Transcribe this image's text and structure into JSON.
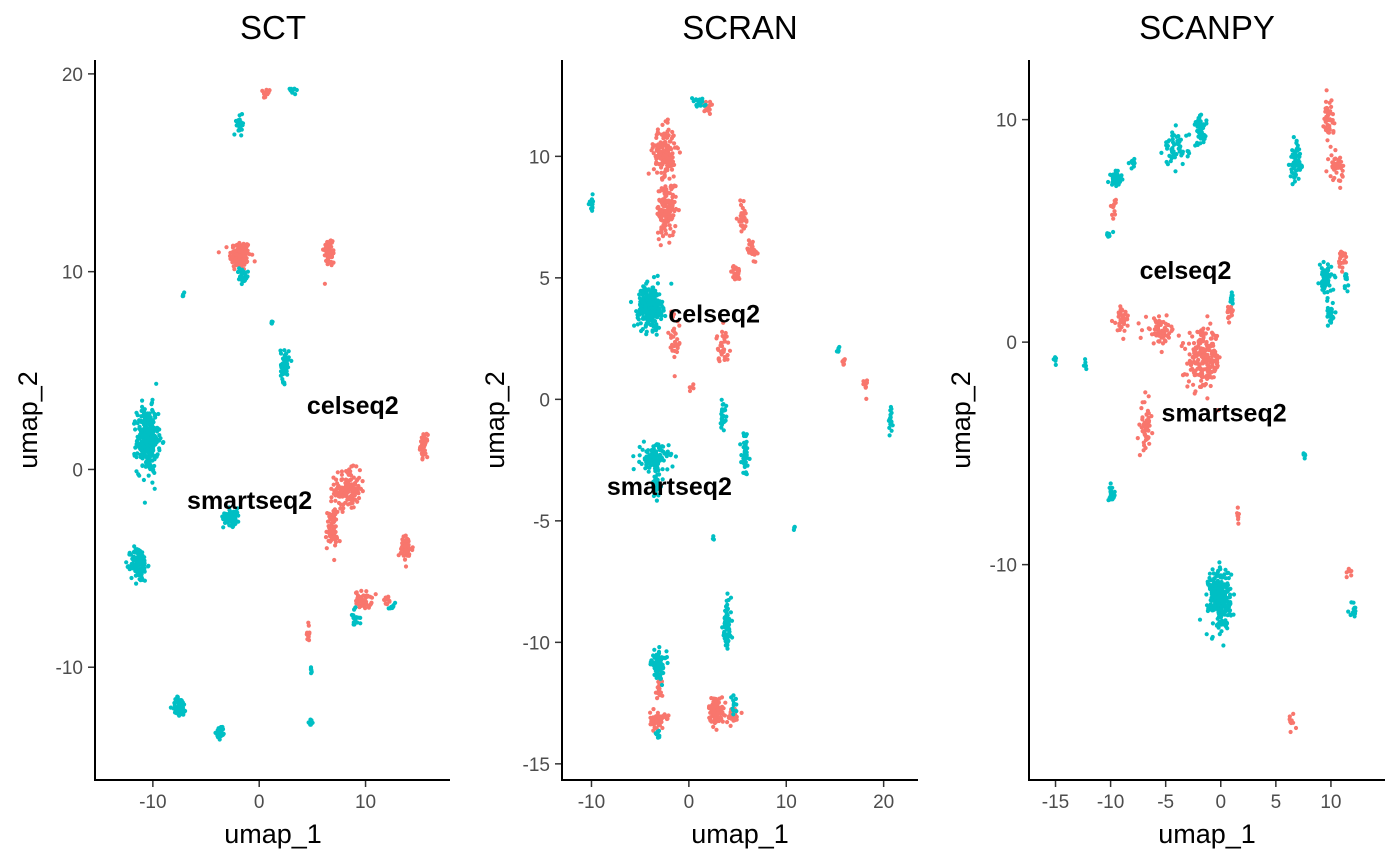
{
  "chart_data": [
    {
      "type": "scatter",
      "title": "SCT",
      "xlabel": "umap_1",
      "ylabel": "umap_2",
      "xlim": [
        -14.5,
        17
      ],
      "ylim": [
        -15.5,
        20.5
      ],
      "xticks": [
        -10,
        0,
        10
      ],
      "yticks": [
        -10,
        0,
        10,
        20
      ],
      "legend": "none",
      "grid": false,
      "series": [
        {
          "color": "#F8766D"
        },
        {
          "color": "#00BFC4"
        }
      ],
      "clusters": [
        {
          "series": 1,
          "x": -10.5,
          "y": 1.5,
          "sx": 0.9,
          "sy": 1.5,
          "n": 320
        },
        {
          "series": 1,
          "x": -11.3,
          "y": -4.8,
          "sx": 0.7,
          "sy": 0.8,
          "n": 120
        },
        {
          "series": 1,
          "x": -7.5,
          "y": -12.0,
          "sx": 0.6,
          "sy": 0.45,
          "n": 60
        },
        {
          "series": 1,
          "x": -3.6,
          "y": -13.3,
          "sx": 0.35,
          "sy": 0.3,
          "n": 30
        },
        {
          "series": 1,
          "x": -2.6,
          "y": -2.4,
          "sx": 0.7,
          "sy": 0.4,
          "n": 80
        },
        {
          "series": 1,
          "x": 2.4,
          "y": 5.3,
          "sx": 0.35,
          "sy": 0.8,
          "n": 60
        },
        {
          "series": 1,
          "x": -1.8,
          "y": 17.4,
          "sx": 0.3,
          "sy": 0.4,
          "n": 30
        },
        {
          "series": 1,
          "x": 3.2,
          "y": 19.2,
          "sx": 0.4,
          "sy": 0.15,
          "n": 10
        },
        {
          "series": 1,
          "x": -7.1,
          "y": 8.9,
          "sx": 0.1,
          "sy": 0.1,
          "n": 4
        },
        {
          "series": 1,
          "x": 1.2,
          "y": 7.5,
          "sx": 0.1,
          "sy": 0.1,
          "n": 4
        },
        {
          "series": 1,
          "x": -1.6,
          "y": 9.7,
          "sx": 0.5,
          "sy": 0.4,
          "n": 25
        },
        {
          "series": 1,
          "x": 9.0,
          "y": -7.5,
          "sx": 0.4,
          "sy": 0.4,
          "n": 20
        },
        {
          "series": 1,
          "x": 12.5,
          "y": -6.9,
          "sx": 0.3,
          "sy": 0.2,
          "n": 8
        },
        {
          "series": 1,
          "x": 4.8,
          "y": -12.8,
          "sx": 0.2,
          "sy": 0.12,
          "n": 10
        },
        {
          "series": 1,
          "x": 4.9,
          "y": -10.2,
          "sx": 0.1,
          "sy": 0.3,
          "n": 6
        },
        {
          "series": 0,
          "x": -1.8,
          "y": 10.8,
          "sx": 0.9,
          "sy": 0.7,
          "n": 130
        },
        {
          "series": 0,
          "x": 6.6,
          "y": 11.0,
          "sx": 0.5,
          "sy": 0.7,
          "n": 55
        },
        {
          "series": 0,
          "x": 0.7,
          "y": 19.0,
          "sx": 0.3,
          "sy": 0.25,
          "n": 15
        },
        {
          "series": 0,
          "x": 8.3,
          "y": -1.0,
          "sx": 1.1,
          "sy": 0.9,
          "n": 150
        },
        {
          "series": 0,
          "x": 6.8,
          "y": -3.0,
          "sx": 0.5,
          "sy": 1.0,
          "n": 70
        },
        {
          "series": 0,
          "x": 15.5,
          "y": 1.2,
          "sx": 0.3,
          "sy": 0.5,
          "n": 45
        },
        {
          "series": 0,
          "x": 13.8,
          "y": -4.0,
          "sx": 0.6,
          "sy": 0.6,
          "n": 55
        },
        {
          "series": 0,
          "x": 9.8,
          "y": -6.6,
          "sx": 0.7,
          "sy": 0.4,
          "n": 50
        },
        {
          "series": 0,
          "x": 4.6,
          "y": -8.3,
          "sx": 0.15,
          "sy": 0.5,
          "n": 12
        },
        {
          "series": 0,
          "x": 12.0,
          "y": -6.6,
          "sx": 0.3,
          "sy": 0.2,
          "n": 10
        }
      ],
      "labels": [
        {
          "text": "celseq2",
          "x": 8.8,
          "y": 3.2
        },
        {
          "text": "smartseq2",
          "x": -0.9,
          "y": -1.6
        }
      ]
    },
    {
      "type": "scatter",
      "title": "SCRAN",
      "xlabel": "umap_1",
      "ylabel": "umap_2",
      "xlim": [
        -12,
        22.5
      ],
      "ylim": [
        -15.5,
        13.8
      ],
      "xticks": [
        -10,
        0,
        10,
        20
      ],
      "yticks": [
        -15,
        -10,
        -5,
        0,
        5,
        10
      ],
      "legend": "none",
      "grid": false,
      "series": [
        {
          "color": "#F8766D"
        },
        {
          "color": "#00BFC4"
        }
      ],
      "clusters": [
        {
          "series": 1,
          "x": -4.0,
          "y": 3.8,
          "sx": 1.1,
          "sy": 0.8,
          "n": 280
        },
        {
          "series": 1,
          "x": -3.5,
          "y": -2.4,
          "sx": 1.3,
          "sy": 0.5,
          "n": 120
        },
        {
          "series": 1,
          "x": -3.3,
          "y": -3.5,
          "sx": 0.5,
          "sy": 0.5,
          "n": 40
        },
        {
          "series": 1,
          "x": -10.0,
          "y": 8.1,
          "sx": 0.2,
          "sy": 0.3,
          "n": 15
        },
        {
          "series": 1,
          "x": 1.0,
          "y": 12.2,
          "sx": 0.6,
          "sy": 0.2,
          "n": 20
        },
        {
          "series": 1,
          "x": 3.5,
          "y": -0.6,
          "sx": 0.3,
          "sy": 0.5,
          "n": 25
        },
        {
          "series": 1,
          "x": 5.8,
          "y": -2.2,
          "sx": 0.35,
          "sy": 0.8,
          "n": 50
        },
        {
          "series": 1,
          "x": 3.9,
          "y": -9.4,
          "sx": 0.4,
          "sy": 1.0,
          "n": 80
        },
        {
          "series": 1,
          "x": -3.1,
          "y": -10.9,
          "sx": 0.7,
          "sy": 0.5,
          "n": 80
        },
        {
          "series": 1,
          "x": 20.7,
          "y": -0.9,
          "sx": 0.2,
          "sy": 0.4,
          "n": 20
        },
        {
          "series": 1,
          "x": 15.3,
          "y": 2.0,
          "sx": 0.15,
          "sy": 0.1,
          "n": 6
        },
        {
          "series": 1,
          "x": 10.8,
          "y": -5.3,
          "sx": 0.1,
          "sy": 0.1,
          "n": 4
        },
        {
          "series": 1,
          "x": 2.5,
          "y": -5.7,
          "sx": 0.08,
          "sy": 0.08,
          "n": 3
        },
        {
          "series": 1,
          "x": -3.2,
          "y": -13.8,
          "sx": 0.3,
          "sy": 0.15,
          "n": 10
        },
        {
          "series": 1,
          "x": 4.6,
          "y": -12.5,
          "sx": 0.3,
          "sy": 0.3,
          "n": 12
        },
        {
          "series": 0,
          "x": -2.5,
          "y": 10.2,
          "sx": 1.0,
          "sy": 0.9,
          "n": 170
        },
        {
          "series": 0,
          "x": -2.3,
          "y": 7.8,
          "sx": 0.9,
          "sy": 1.0,
          "n": 140
        },
        {
          "series": 0,
          "x": 5.5,
          "y": 7.5,
          "sx": 0.35,
          "sy": 0.5,
          "n": 35
        },
        {
          "series": 0,
          "x": 6.5,
          "y": 6.2,
          "sx": 0.4,
          "sy": 0.4,
          "n": 30
        },
        {
          "series": 0,
          "x": 4.8,
          "y": 5.2,
          "sx": 0.4,
          "sy": 0.3,
          "n": 25
        },
        {
          "series": 0,
          "x": 3.5,
          "y": 2.2,
          "sx": 0.6,
          "sy": 0.6,
          "n": 35
        },
        {
          "series": 0,
          "x": -1.5,
          "y": 2.5,
          "sx": 0.6,
          "sy": 1.2,
          "n": 30
        },
        {
          "series": 0,
          "x": 2.0,
          "y": 12.0,
          "sx": 0.6,
          "sy": 0.4,
          "n": 15
        },
        {
          "series": 0,
          "x": 0.3,
          "y": 0.4,
          "sx": 0.3,
          "sy": 0.3,
          "n": 5
        },
        {
          "series": 0,
          "x": 18.0,
          "y": 0.6,
          "sx": 0.3,
          "sy": 0.4,
          "n": 10
        },
        {
          "series": 0,
          "x": 16.0,
          "y": 1.5,
          "sx": 0.2,
          "sy": 0.2,
          "n": 6
        },
        {
          "series": 0,
          "x": -3.2,
          "y": -13.2,
          "sx": 0.7,
          "sy": 0.3,
          "n": 70
        },
        {
          "series": 0,
          "x": -3.0,
          "y": -11.8,
          "sx": 0.3,
          "sy": 0.6,
          "n": 20
        },
        {
          "series": 0,
          "x": 2.8,
          "y": -12.8,
          "sx": 0.7,
          "sy": 0.5,
          "n": 100
        },
        {
          "series": 0,
          "x": 4.5,
          "y": -13.0,
          "sx": 0.6,
          "sy": 0.3,
          "n": 40
        }
      ],
      "labels": [
        {
          "text": "celseq2",
          "x": 2.6,
          "y": 3.5
        },
        {
          "text": "smartseq2",
          "x": -2.0,
          "y": -3.6
        }
      ]
    },
    {
      "type": "scatter",
      "title": "SCANPY",
      "xlabel": "umap_1",
      "ylabel": "umap_2",
      "xlim": [
        -16.5,
        14
      ],
      "ylim": [
        -19.5,
        12.5
      ],
      "xticks": [
        -15,
        -10,
        -5,
        0,
        5,
        10
      ],
      "yticks": [
        -10,
        0,
        10
      ],
      "legend": "none",
      "grid": false,
      "series": [
        {
          "color": "#F8766D"
        },
        {
          "color": "#00BFC4"
        }
      ],
      "clusters": [
        {
          "series": 1,
          "x": -0.1,
          "y": -11.5,
          "sx": 0.9,
          "sy": 1.2,
          "n": 280
        },
        {
          "series": 1,
          "x": -4.0,
          "y": 8.7,
          "sx": 1.0,
          "sy": 0.7,
          "n": 60
        },
        {
          "series": 1,
          "x": -1.8,
          "y": 9.5,
          "sx": 0.5,
          "sy": 0.6,
          "n": 50
        },
        {
          "series": 1,
          "x": -9.5,
          "y": 7.4,
          "sx": 0.5,
          "sy": 0.3,
          "n": 45
        },
        {
          "series": 1,
          "x": -8.0,
          "y": 8.0,
          "sx": 0.3,
          "sy": 0.2,
          "n": 10
        },
        {
          "series": 1,
          "x": -10.1,
          "y": 4.8,
          "sx": 0.3,
          "sy": 0.2,
          "n": 8
        },
        {
          "series": 1,
          "x": 6.8,
          "y": 8.0,
          "sx": 0.5,
          "sy": 0.8,
          "n": 60
        },
        {
          "series": 1,
          "x": 9.5,
          "y": 2.8,
          "sx": 0.5,
          "sy": 0.6,
          "n": 60
        },
        {
          "series": 1,
          "x": 10.0,
          "y": 1.3,
          "sx": 0.4,
          "sy": 0.4,
          "n": 25
        },
        {
          "series": 1,
          "x": 11.4,
          "y": 2.5,
          "sx": 0.2,
          "sy": 0.6,
          "n": 10
        },
        {
          "series": 1,
          "x": -9.9,
          "y": -6.8,
          "sx": 0.3,
          "sy": 0.3,
          "n": 20
        },
        {
          "series": 1,
          "x": -15.0,
          "y": -0.8,
          "sx": 0.1,
          "sy": 0.2,
          "n": 6
        },
        {
          "series": 1,
          "x": -12.3,
          "y": -1.0,
          "sx": 0.1,
          "sy": 0.3,
          "n": 6
        },
        {
          "series": 1,
          "x": 7.6,
          "y": -5.1,
          "sx": 0.1,
          "sy": 0.2,
          "n": 5
        },
        {
          "series": 1,
          "x": 12.0,
          "y": -12.0,
          "sx": 0.3,
          "sy": 0.3,
          "n": 15
        },
        {
          "series": 1,
          "x": 1.0,
          "y": 2.0,
          "sx": 0.3,
          "sy": 0.3,
          "n": 10
        },
        {
          "series": 0,
          "x": -1.5,
          "y": -0.8,
          "sx": 1.4,
          "sy": 1.2,
          "n": 210
        },
        {
          "series": 0,
          "x": -5.5,
          "y": 0.5,
          "sx": 1.2,
          "sy": 0.5,
          "n": 60
        },
        {
          "series": 0,
          "x": -9.0,
          "y": 1.0,
          "sx": 0.7,
          "sy": 0.6,
          "n": 35
        },
        {
          "series": 0,
          "x": -6.8,
          "y": -3.8,
          "sx": 0.4,
          "sy": 1.0,
          "n": 50
        },
        {
          "series": 0,
          "x": 9.8,
          "y": 10.0,
          "sx": 0.4,
          "sy": 0.8,
          "n": 45
        },
        {
          "series": 0,
          "x": 10.5,
          "y": 7.9,
          "sx": 0.6,
          "sy": 0.5,
          "n": 40
        },
        {
          "series": 0,
          "x": 11.0,
          "y": 3.8,
          "sx": 0.4,
          "sy": 0.5,
          "n": 20
        },
        {
          "series": 0,
          "x": 0.8,
          "y": 1.2,
          "sx": 0.3,
          "sy": 0.5,
          "n": 15
        },
        {
          "series": 0,
          "x": 1.6,
          "y": -7.8,
          "sx": 0.1,
          "sy": 0.5,
          "n": 8
        },
        {
          "series": 0,
          "x": 6.4,
          "y": -17.0,
          "sx": 0.3,
          "sy": 0.3,
          "n": 10
        },
        {
          "series": 0,
          "x": 11.7,
          "y": -10.3,
          "sx": 0.2,
          "sy": 0.3,
          "n": 8
        },
        {
          "series": 0,
          "x": -9.7,
          "y": 6.0,
          "sx": 0.2,
          "sy": 0.6,
          "n": 12
        }
      ],
      "labels": [
        {
          "text": "celseq2",
          "x": -3.2,
          "y": 3.2
        },
        {
          "text": "smartseq2",
          "x": 0.3,
          "y": -3.2
        }
      ]
    }
  ]
}
